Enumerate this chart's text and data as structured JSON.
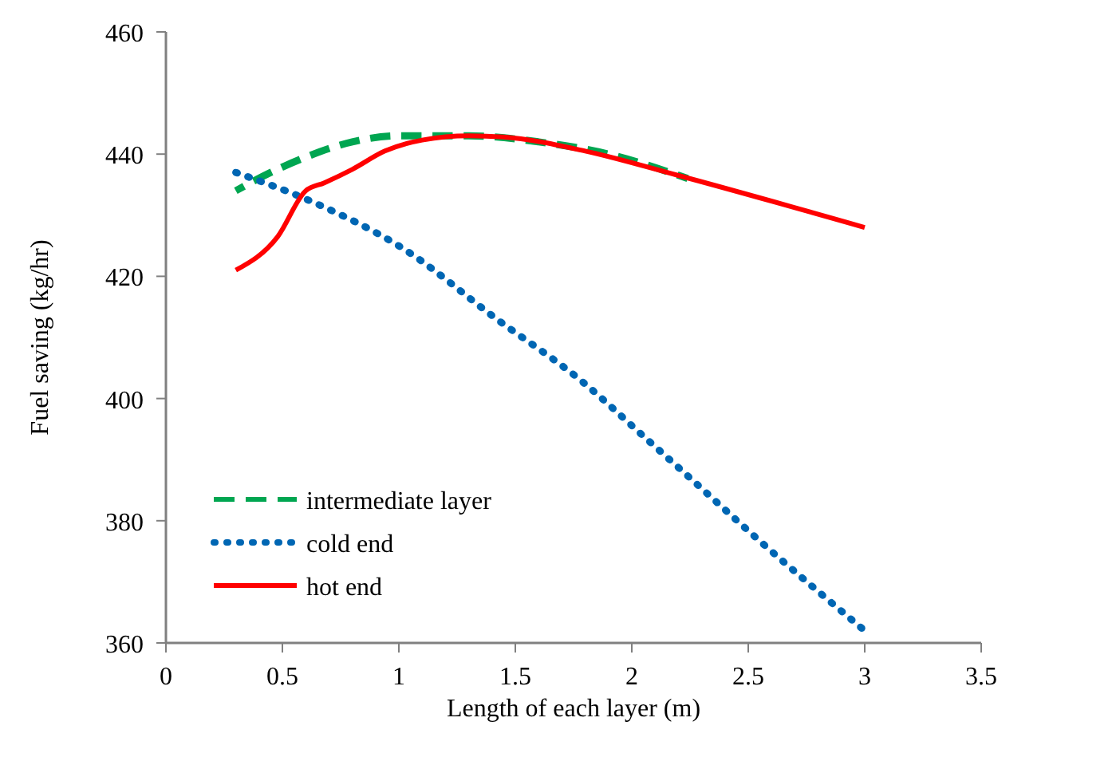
{
  "chart_data": {
    "type": "line",
    "xlabel": "Length of each layer  (m)",
    "ylabel": "Fuel  saving (kg/hr)",
    "xlim": [
      0,
      3.5
    ],
    "xticks": [
      0,
      {
        "value": 0.5,
        "label": "0.5"
      },
      1,
      {
        "value": 1.5,
        "label": "1.5"
      },
      2,
      {
        "value": 2.5,
        "label": "2.5"
      },
      3,
      {
        "value": 3.5,
        "label": "3.5"
      }
    ],
    "ylim": [
      360,
      460
    ],
    "yticks": [
      360,
      380,
      400,
      420,
      440,
      460
    ],
    "grid": false,
    "legend": "bottom left",
    "series": [
      {
        "name": "intermediate layer",
        "color": "#00a651",
        "line_style": "dashed",
        "x": [
          0.3,
          0.45,
          0.6,
          0.8,
          1.0,
          1.3,
          1.6,
          1.9,
          2.24
        ],
        "values": [
          434,
          437,
          439.5,
          442,
          443,
          443,
          442,
          440,
          436
        ]
      },
      {
        "name": "cold end",
        "color": "#0066b3",
        "line_style": "dotted",
        "x": [
          0.3,
          0.64,
          1.02,
          1.42,
          1.78,
          2.06,
          2.25,
          2.54,
          3.0
        ],
        "values": [
          437,
          432,
          424.5,
          413,
          403,
          393.5,
          387,
          377,
          362
        ]
      },
      {
        "name": "hot end",
        "color": "#ff0000",
        "line_style": "solid",
        "x": [
          0.3,
          0.48,
          0.6,
          0.68,
          0.8,
          0.94,
          1.1,
          1.3,
          1.45,
          1.8,
          2.2,
          3.0
        ],
        "values": [
          421,
          426.5,
          434,
          435.3,
          437.5,
          440.5,
          442.3,
          443,
          442.8,
          440.5,
          436.5,
          428
        ]
      }
    ]
  }
}
